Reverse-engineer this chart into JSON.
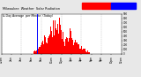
{
  "title": "Milwaukee  Weather  Solar Radiation",
  "title2": "& Day Average  per Minute  (Today)",
  "bg_color": "#e8e8e8",
  "plot_bg": "#ffffff",
  "bar_color": "#ff0000",
  "current_marker_color": "#0000ff",
  "xlim": [
    0,
    1440
  ],
  "ylim": [
    0,
    900
  ],
  "ytick_values": [
    0,
    100,
    200,
    300,
    400,
    500,
    600,
    700,
    800,
    900
  ],
  "grid_color": "#999999",
  "current_minute": 430,
  "solar_start": 390,
  "solar_peak_minute": 680,
  "solar_end": 1060,
  "solar_peak_value": 870,
  "seed": 7,
  "legend_split": 0.55
}
